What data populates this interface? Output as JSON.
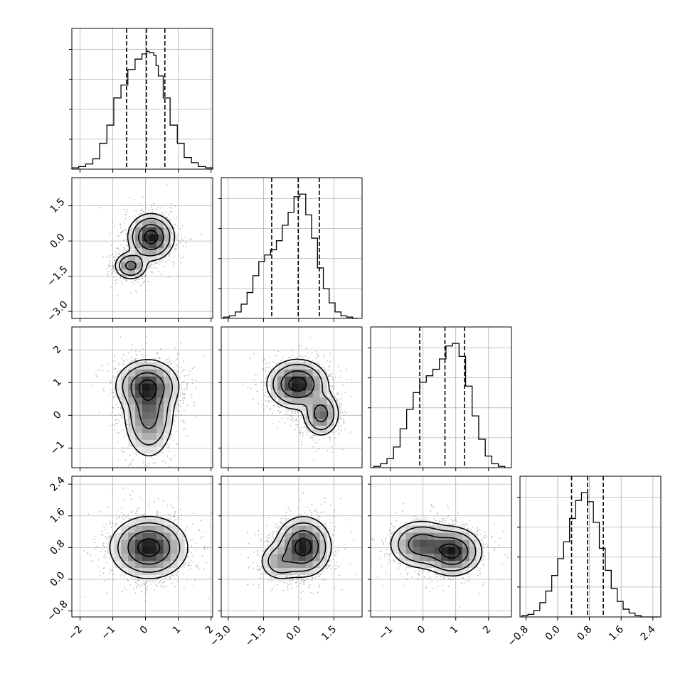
{
  "chart_data": {
    "type": "corner",
    "title": "",
    "grid": true,
    "parameters": [
      {
        "xlim": [
          -2.25,
          2.05
        ],
        "ylim_1d": [
          -1.9,
          2.5
        ],
        "ticks": [
          -2,
          -1,
          0,
          1,
          2
        ],
        "tick_labels": [
          "−2",
          "−1",
          "0",
          "1",
          "2"
        ],
        "quantiles": [
          -0.58,
          0.03,
          0.59
        ],
        "hist_bin_edges": [
          -2.25,
          -2.04,
          -1.83,
          -1.61,
          -1.4,
          -1.18,
          -0.97,
          -0.75,
          -0.54,
          -0.32,
          -0.11,
          0.04,
          0.11,
          0.25,
          0.32,
          0.39,
          0.54,
          0.75,
          0.97,
          1.18,
          1.4,
          1.61,
          1.83,
          2.05
        ],
        "hist_counts": [
          0.01,
          0.02,
          0.04,
          0.08,
          0.2,
          0.34,
          0.55,
          0.65,
          0.77,
          0.85,
          0.89,
          0.91,
          0.9,
          0.88,
          0.8,
          0.72,
          0.55,
          0.34,
          0.2,
          0.09,
          0.05,
          0.02,
          0.01
        ]
      },
      {
        "xlim": [
          -3.3,
          2.7
        ],
        "ylim": [
          -3.3,
          2.7
        ],
        "ticks": [
          -3.0,
          -1.5,
          0.0,
          1.5
        ],
        "tick_labels": [
          "−3.0",
          "−1.5",
          "0.0",
          "1.5"
        ],
        "quantiles": [
          -1.15,
          -0.02,
          0.88
        ],
        "hist_bin_edges": [
          -3.2,
          -2.95,
          -2.7,
          -2.45,
          -2.2,
          -1.95,
          -1.7,
          -1.45,
          -1.2,
          -0.95,
          -0.7,
          -0.45,
          -0.2,
          0.05,
          0.3,
          0.55,
          0.8,
          1.05,
          1.3,
          1.55,
          1.8,
          2.05,
          2.3,
          2.55
        ],
        "hist_counts": [
          0.01,
          0.02,
          0.05,
          0.11,
          0.2,
          0.33,
          0.44,
          0.49,
          0.53,
          0.6,
          0.72,
          0.82,
          0.94,
          0.96,
          0.8,
          0.62,
          0.39,
          0.23,
          0.12,
          0.05,
          0.02,
          0.01,
          0.0
        ]
      },
      {
        "xlim": [
          -1.6,
          2.7
        ],
        "ylim": [
          -1.6,
          2.7
        ],
        "ticks": [
          -1,
          0,
          1,
          2
        ],
        "tick_labels": [
          "−1",
          "0",
          "1",
          "2"
        ],
        "quantiles": [
          -0.1,
          0.67,
          1.27
        ],
        "hist_bin_edges": [
          -1.5,
          -1.3,
          -1.1,
          -0.9,
          -0.7,
          -0.5,
          -0.3,
          -0.1,
          0.1,
          0.3,
          0.5,
          0.7,
          0.9,
          1.1,
          1.3,
          1.5,
          1.7,
          1.9,
          2.1,
          2.3,
          2.5
        ],
        "hist_counts": [
          0.01,
          0.03,
          0.07,
          0.16,
          0.3,
          0.45,
          0.58,
          0.66,
          0.71,
          0.76,
          0.84,
          0.94,
          0.96,
          0.86,
          0.63,
          0.4,
          0.22,
          0.09,
          0.03,
          0.01
        ]
      },
      {
        "xlim": [
          -0.95,
          2.6
        ],
        "ticks": [
          -0.8,
          0.0,
          0.8,
          1.6,
          2.4
        ],
        "tick_labels": [
          "−0.8",
          "0.0",
          "0.8",
          "1.6",
          "2.4"
        ],
        "quantiles": [
          0.35,
          0.75,
          1.15
        ],
        "hist_bin_edges": [
          -0.9,
          -0.75,
          -0.6,
          -0.45,
          -0.3,
          -0.15,
          0.0,
          0.15,
          0.3,
          0.45,
          0.6,
          0.75,
          0.9,
          1.05,
          1.2,
          1.35,
          1.5,
          1.65,
          1.8,
          1.95,
          2.1,
          2.25,
          2.4,
          2.55
        ],
        "hist_counts": [
          0.01,
          0.02,
          0.05,
          0.11,
          0.2,
          0.32,
          0.45,
          0.58,
          0.76,
          0.9,
          0.96,
          0.89,
          0.73,
          0.53,
          0.36,
          0.22,
          0.12,
          0.06,
          0.03,
          0.01,
          0.0,
          0.0,
          0.0
        ]
      }
    ],
    "pairs": [
      {
        "row": 1,
        "col": 0,
        "modes": [
          [
            0.17,
            0.17,
            0.3,
            0.42,
            0.95
          ],
          [
            -0.45,
            -1.05,
            0.22,
            0.26,
            0.55
          ]
        ]
      },
      {
        "row": 2,
        "col": 0,
        "modes": [
          [
            0.05,
            0.9,
            0.42,
            0.34,
            0.7
          ],
          [
            0.1,
            0.05,
            0.34,
            0.6,
            0.55
          ]
        ]
      },
      {
        "row": 2,
        "col": 1,
        "modes": [
          [
            -0.05,
            0.95,
            0.55,
            0.32,
            0.8
          ],
          [
            0.95,
            0.05,
            0.34,
            0.3,
            0.5
          ]
        ]
      },
      {
        "row": 3,
        "col": 0,
        "modes": [
          [
            0.1,
            0.8,
            0.5,
            0.33,
            1.0
          ]
        ]
      },
      {
        "row": 3,
        "col": 1,
        "modes": [
          [
            0.2,
            0.82,
            0.5,
            0.32,
            0.85
          ],
          [
            -0.8,
            0.45,
            0.4,
            0.22,
            0.3
          ]
        ]
      },
      {
        "row": 3,
        "col": 2,
        "modes": [
          [
            0.9,
            0.7,
            0.38,
            0.26,
            0.75
          ],
          [
            -0.05,
            0.88,
            0.42,
            0.26,
            0.55
          ]
        ]
      }
    ],
    "contour_levels": [
      0.8,
      0.45,
      0.17,
      0.06
    ]
  }
}
